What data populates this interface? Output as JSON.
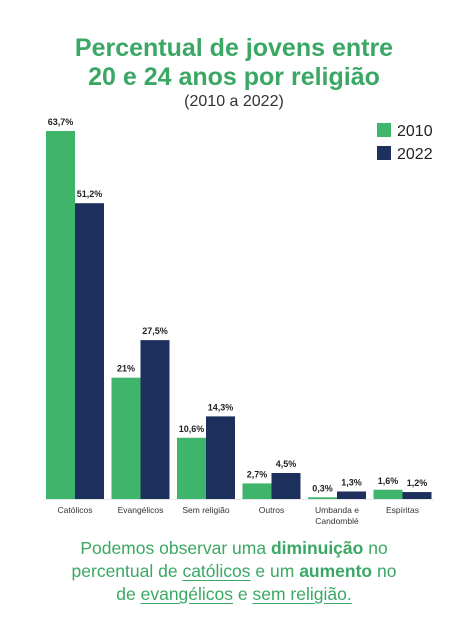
{
  "title_line1": "Percentual de jovens entre",
  "title_line2": "20 e 24 anos por religião",
  "subtitle": "(2010 a 2022)",
  "colors": {
    "2010": "#3fb56c",
    "2022": "#1d2f5c",
    "title": "#3aa864"
  },
  "chart_data": {
    "type": "bar",
    "title": "Percentual de jovens entre 20 e 24 anos por religião",
    "subtitle": "(2010 a 2022)",
    "categories": [
      "Católicos",
      "Evangélicos",
      "Sem religião",
      "Outros",
      "Umbanda e Candomblé",
      "Espíritas"
    ],
    "category_lines": [
      [
        "Católicos"
      ],
      [
        "Evangélicos"
      ],
      [
        "Sem religião"
      ],
      [
        "Outros"
      ],
      [
        "Umbanda e",
        "Candomblé"
      ],
      [
        "Espíritas"
      ]
    ],
    "series": [
      {
        "name": "2010",
        "values": [
          63.7,
          21,
          10.6,
          2.7,
          0.3,
          1.6
        ],
        "labels": [
          "63,7%",
          "21%",
          "10,6%",
          "2,7%",
          "0,3%",
          "1,6%"
        ]
      },
      {
        "name": "2022",
        "values": [
          51.2,
          27.5,
          14.3,
          4.5,
          1.3,
          1.2
        ],
        "labels": [
          "51,2%",
          "27,5%",
          "14,3%",
          "4,5%",
          "1,3%",
          "1,2%"
        ]
      }
    ],
    "ylim": [
      0,
      63.7
    ],
    "grid": false,
    "legend": "top-right"
  },
  "caption": {
    "l1_a": "Podemos observar uma ",
    "l1_b": "diminuição",
    "l1_c": " no",
    "l2_a": "percentual de ",
    "l2_b": "católicos",
    "l2_c": " e um ",
    "l2_d": "aumento",
    "l2_e": " no",
    "l3_a": "de ",
    "l3_b": "evangélicos",
    "l3_c": " e ",
    "l3_d": "sem religião."
  }
}
